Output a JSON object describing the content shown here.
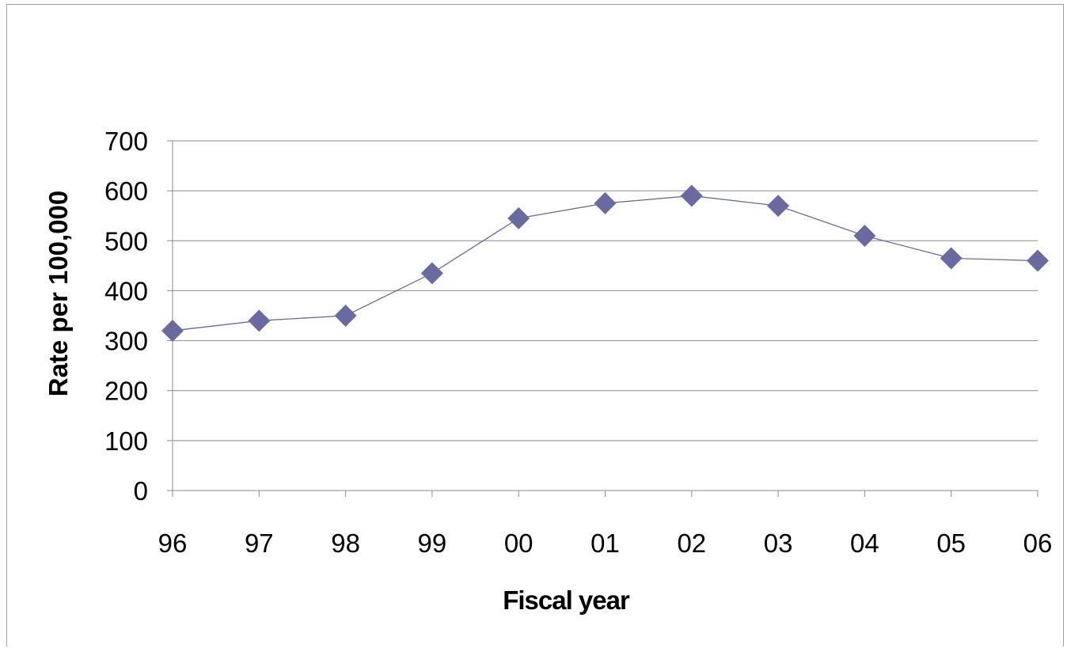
{
  "chart_data": {
    "type": "line",
    "title": "",
    "xlabel": "Fiscal year",
    "ylabel": "Rate per 100,000",
    "categories": [
      "96",
      "97",
      "98",
      "99",
      "00",
      "01",
      "02",
      "03",
      "04",
      "05",
      "06"
    ],
    "series": [
      {
        "values": [
          320,
          340,
          350,
          435,
          545,
          575,
          590,
          570,
          510,
          465,
          460
        ],
        "color": "#6a6aa0",
        "marker": "diamond"
      }
    ],
    "ylim": [
      0,
      700
    ],
    "yticks": [
      0,
      100,
      200,
      300,
      400,
      500,
      600,
      700
    ],
    "grid": true,
    "legend": "none"
  }
}
